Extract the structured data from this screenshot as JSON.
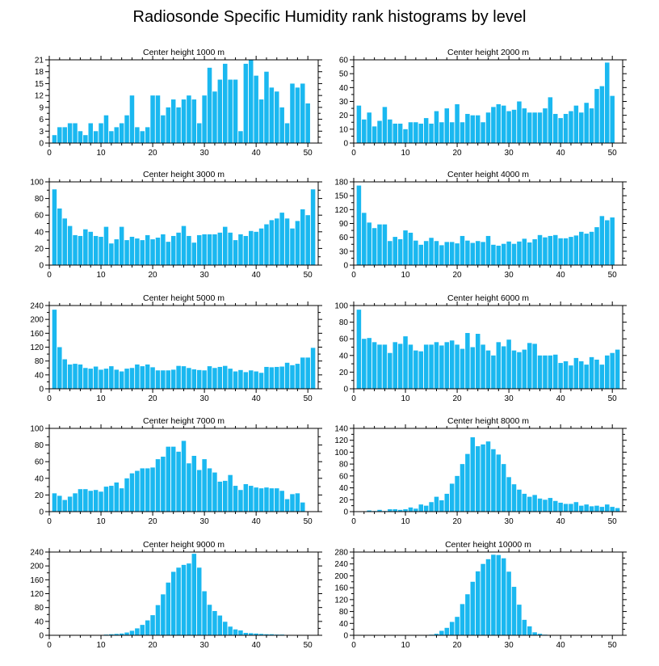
{
  "page": {
    "title": "Radiosonde Specific Humidity rank histograms by level"
  },
  "colors": {
    "bar": "#1ab8f0",
    "axis": "#000000",
    "background": "#ffffff"
  },
  "chart_data": [
    {
      "type": "bar",
      "title": "Center height 1000 m",
      "xlabel": "",
      "ylabel": "",
      "xlim": [
        0,
        52
      ],
      "ylim": [
        0,
        21
      ],
      "x_ticks": [
        0,
        10,
        20,
        30,
        40,
        50
      ],
      "y_ticks": [
        0,
        3,
        6,
        9,
        12,
        15,
        18,
        21
      ],
      "categories": [
        1,
        2,
        3,
        4,
        5,
        6,
        7,
        8,
        9,
        10,
        11,
        12,
        13,
        14,
        15,
        16,
        17,
        18,
        19,
        20,
        21,
        22,
        23,
        24,
        25,
        26,
        27,
        28,
        29,
        30,
        31,
        32,
        33,
        34,
        35,
        36,
        37,
        38,
        39,
        40,
        41,
        42,
        43,
        44,
        45,
        46,
        47,
        48,
        49,
        50,
        51
      ],
      "values": [
        2,
        4,
        4,
        5,
        5,
        3,
        2,
        5,
        3,
        5,
        7,
        3,
        4,
        5,
        7,
        12,
        4,
        3,
        4,
        12,
        12,
        7,
        9,
        11,
        9,
        11,
        12,
        11,
        5,
        12,
        19,
        13,
        16,
        20,
        16,
        16,
        3,
        20,
        21,
        17,
        11,
        18,
        14,
        13,
        9,
        5,
        15,
        14,
        15,
        10,
        0
      ]
    },
    {
      "type": "bar",
      "title": "Center height 2000 m",
      "xlabel": "",
      "ylabel": "",
      "xlim": [
        0,
        52
      ],
      "ylim": [
        0,
        60
      ],
      "x_ticks": [
        0,
        10,
        20,
        30,
        40,
        50
      ],
      "y_ticks": [
        0,
        10,
        20,
        30,
        40,
        50,
        60
      ],
      "categories": [
        1,
        2,
        3,
        4,
        5,
        6,
        7,
        8,
        9,
        10,
        11,
        12,
        13,
        14,
        15,
        16,
        17,
        18,
        19,
        20,
        21,
        22,
        23,
        24,
        25,
        26,
        27,
        28,
        29,
        30,
        31,
        32,
        33,
        34,
        35,
        36,
        37,
        38,
        39,
        40,
        41,
        42,
        43,
        44,
        45,
        46,
        47,
        48,
        49,
        50,
        51
      ],
      "values": [
        27,
        17,
        22,
        12,
        16,
        26,
        17,
        14,
        14,
        10,
        15,
        15,
        14,
        18,
        14,
        23,
        15,
        25,
        15,
        28,
        15,
        21,
        20,
        20,
        15,
        22,
        26,
        28,
        27,
        23,
        24,
        30,
        25,
        22,
        22,
        22,
        25,
        33,
        21,
        18,
        21,
        23,
        27,
        22,
        29,
        25,
        39,
        41,
        58,
        34,
        0
      ]
    },
    {
      "type": "bar",
      "title": "Center height 3000 m",
      "xlabel": "",
      "ylabel": "",
      "xlim": [
        0,
        52
      ],
      "ylim": [
        0,
        100
      ],
      "x_ticks": [
        0,
        10,
        20,
        30,
        40,
        50
      ],
      "y_ticks": [
        0,
        20,
        40,
        60,
        80,
        100
      ],
      "categories": [
        1,
        2,
        3,
        4,
        5,
        6,
        7,
        8,
        9,
        10,
        11,
        12,
        13,
        14,
        15,
        16,
        17,
        18,
        19,
        20,
        21,
        22,
        23,
        24,
        25,
        26,
        27,
        28,
        29,
        30,
        31,
        32,
        33,
        34,
        35,
        36,
        37,
        38,
        39,
        40,
        41,
        42,
        43,
        44,
        45,
        46,
        47,
        48,
        49,
        50,
        51
      ],
      "values": [
        91,
        68,
        56,
        47,
        36,
        35,
        43,
        40,
        35,
        34,
        46,
        26,
        31,
        46,
        30,
        34,
        32,
        30,
        36,
        31,
        33,
        37,
        28,
        35,
        39,
        47,
        35,
        27,
        36,
        37,
        37,
        37,
        39,
        46,
        39,
        30,
        37,
        35,
        41,
        40,
        44,
        49,
        54,
        56,
        63,
        56,
        44,
        53,
        67,
        60,
        91
      ]
    },
    {
      "type": "bar",
      "title": "Center height 4000 m",
      "xlabel": "",
      "ylabel": "",
      "xlim": [
        0,
        52
      ],
      "ylim": [
        0,
        180
      ],
      "x_ticks": [
        0,
        10,
        20,
        30,
        40,
        50
      ],
      "y_ticks": [
        0,
        30,
        60,
        90,
        120,
        150,
        180
      ],
      "categories": [
        1,
        2,
        3,
        4,
        5,
        6,
        7,
        8,
        9,
        10,
        11,
        12,
        13,
        14,
        15,
        16,
        17,
        18,
        19,
        20,
        21,
        22,
        23,
        24,
        25,
        26,
        27,
        28,
        29,
        30,
        31,
        32,
        33,
        34,
        35,
        36,
        37,
        38,
        39,
        40,
        41,
        42,
        43,
        44,
        45,
        46,
        47,
        48,
        49,
        50,
        51
      ],
      "values": [
        172,
        113,
        92,
        80,
        88,
        88,
        52,
        61,
        56,
        75,
        70,
        53,
        44,
        52,
        59,
        52,
        43,
        50,
        50,
        47,
        63,
        53,
        48,
        52,
        50,
        63,
        44,
        42,
        46,
        51,
        46,
        51,
        57,
        49,
        56,
        65,
        60,
        63,
        65,
        58,
        58,
        61,
        64,
        72,
        68,
        72,
        82,
        106,
        97,
        103,
        0
      ]
    },
    {
      "type": "bar",
      "title": "Center height 5000 m",
      "xlabel": "",
      "ylabel": "",
      "xlim": [
        0,
        52
      ],
      "ylim": [
        0,
        240
      ],
      "x_ticks": [
        0,
        10,
        20,
        30,
        40,
        50
      ],
      "y_ticks": [
        0,
        40,
        80,
        120,
        160,
        200,
        240
      ],
      "categories": [
        1,
        2,
        3,
        4,
        5,
        6,
        7,
        8,
        9,
        10,
        11,
        12,
        13,
        14,
        15,
        16,
        17,
        18,
        19,
        20,
        21,
        22,
        23,
        24,
        25,
        26,
        27,
        28,
        29,
        30,
        31,
        32,
        33,
        34,
        35,
        36,
        37,
        38,
        39,
        40,
        41,
        42,
        43,
        44,
        45,
        46,
        47,
        48,
        49,
        50,
        51
      ],
      "values": [
        228,
        120,
        85,
        70,
        72,
        70,
        60,
        58,
        64,
        55,
        58,
        65,
        55,
        50,
        58,
        60,
        70,
        65,
        70,
        62,
        53,
        53,
        53,
        55,
        66,
        65,
        60,
        56,
        54,
        53,
        65,
        60,
        63,
        66,
        58,
        50,
        54,
        48,
        53,
        50,
        46,
        63,
        62,
        63,
        64,
        75,
        68,
        72,
        90,
        90,
        118
      ]
    },
    {
      "type": "bar",
      "title": "Center height 6000 m",
      "xlabel": "",
      "ylabel": "",
      "xlim": [
        0,
        52
      ],
      "ylim": [
        0,
        100
      ],
      "x_ticks": [
        0,
        10,
        20,
        30,
        40,
        50
      ],
      "y_ticks": [
        0,
        20,
        40,
        60,
        80,
        100
      ],
      "categories": [
        1,
        2,
        3,
        4,
        5,
        6,
        7,
        8,
        9,
        10,
        11,
        12,
        13,
        14,
        15,
        16,
        17,
        18,
        19,
        20,
        21,
        22,
        23,
        24,
        25,
        26,
        27,
        28,
        29,
        30,
        31,
        32,
        33,
        34,
        35,
        36,
        37,
        38,
        39,
        40,
        41,
        42,
        43,
        44,
        45,
        46,
        47,
        48,
        49,
        50,
        51
      ],
      "values": [
        95,
        60,
        61,
        56,
        53,
        53,
        43,
        56,
        54,
        63,
        53,
        46,
        45,
        53,
        53,
        56,
        52,
        56,
        58,
        53,
        48,
        67,
        50,
        66,
        53,
        46,
        40,
        56,
        51,
        59,
        46,
        44,
        47,
        55,
        54,
        40,
        40,
        40,
        41,
        31,
        33,
        28,
        37,
        33,
        29,
        38,
        35,
        29,
        40,
        43,
        47
      ]
    },
    {
      "type": "bar",
      "title": "Center height 7000 m",
      "xlabel": "",
      "ylabel": "",
      "xlim": [
        0,
        52
      ],
      "ylim": [
        0,
        100
      ],
      "x_ticks": [
        0,
        10,
        20,
        30,
        40,
        50
      ],
      "y_ticks": [
        0,
        20,
        40,
        60,
        80,
        100
      ],
      "categories": [
        1,
        2,
        3,
        4,
        5,
        6,
        7,
        8,
        9,
        10,
        11,
        12,
        13,
        14,
        15,
        16,
        17,
        18,
        19,
        20,
        21,
        22,
        23,
        24,
        25,
        26,
        27,
        28,
        29,
        30,
        31,
        32,
        33,
        34,
        35,
        36,
        37,
        38,
        39,
        40,
        41,
        42,
        43,
        44,
        45,
        46,
        47,
        48,
        49,
        50,
        51
      ],
      "values": [
        22,
        19,
        14,
        18,
        22,
        27,
        27,
        25,
        26,
        24,
        30,
        31,
        35,
        28,
        40,
        46,
        49,
        52,
        52,
        53,
        63,
        66,
        78,
        78,
        72,
        85,
        58,
        67,
        50,
        63,
        52,
        47,
        36,
        37,
        44,
        31,
        26,
        33,
        31,
        29,
        28,
        29,
        28,
        28,
        25,
        15,
        21,
        22,
        11,
        0,
        0
      ]
    },
    {
      "type": "bar",
      "title": "Center height 8000 m",
      "xlabel": "",
      "ylabel": "",
      "xlim": [
        0,
        52
      ],
      "ylim": [
        0,
        140
      ],
      "x_ticks": [
        0,
        10,
        20,
        30,
        40,
        50
      ],
      "y_ticks": [
        0,
        20,
        40,
        60,
        80,
        100,
        120,
        140
      ],
      "categories": [
        1,
        2,
        3,
        4,
        5,
        6,
        7,
        8,
        9,
        10,
        11,
        12,
        13,
        14,
        15,
        16,
        17,
        18,
        19,
        20,
        21,
        22,
        23,
        24,
        25,
        26,
        27,
        28,
        29,
        30,
        31,
        32,
        33,
        34,
        35,
        36,
        37,
        38,
        39,
        40,
        41,
        42,
        43,
        44,
        45,
        46,
        47,
        48,
        49,
        50,
        51
      ],
      "values": [
        0,
        0,
        2,
        1,
        3,
        1,
        4,
        4,
        3,
        4,
        7,
        5,
        12,
        10,
        16,
        25,
        19,
        30,
        47,
        60,
        80,
        97,
        125,
        110,
        113,
        118,
        105,
        96,
        80,
        58,
        46,
        37,
        30,
        25,
        28,
        22,
        20,
        23,
        18,
        15,
        13,
        13,
        16,
        10,
        12,
        9,
        10,
        8,
        12,
        8,
        6
      ]
    },
    {
      "type": "bar",
      "title": "Center height 9000 m",
      "xlabel": "",
      "ylabel": "",
      "xlim": [
        0,
        52
      ],
      "ylim": [
        0,
        240
      ],
      "x_ticks": [
        0,
        10,
        20,
        30,
        40,
        50
      ],
      "y_ticks": [
        0,
        40,
        80,
        120,
        160,
        200,
        240
      ],
      "categories": [
        1,
        2,
        3,
        4,
        5,
        6,
        7,
        8,
        9,
        10,
        11,
        12,
        13,
        14,
        15,
        16,
        17,
        18,
        19,
        20,
        21,
        22,
        23,
        24,
        25,
        26,
        27,
        28,
        29,
        30,
        31,
        32,
        33,
        34,
        35,
        36,
        37,
        38,
        39,
        40,
        41,
        42,
        43,
        44,
        45,
        46,
        47,
        48,
        49,
        50,
        51
      ],
      "values": [
        0,
        0,
        0,
        0,
        0,
        0,
        0,
        0,
        0,
        1,
        2,
        3,
        4,
        5,
        8,
        13,
        20,
        30,
        43,
        58,
        87,
        118,
        152,
        183,
        195,
        203,
        207,
        235,
        195,
        127,
        88,
        70,
        57,
        39,
        25,
        17,
        14,
        7,
        6,
        5,
        4,
        3,
        3,
        2,
        2,
        1,
        1,
        1,
        0,
        0,
        0
      ]
    },
    {
      "type": "bar",
      "title": "Center height 10000 m",
      "xlabel": "",
      "ylabel": "",
      "xlim": [
        0,
        52
      ],
      "ylim": [
        0,
        280
      ],
      "x_ticks": [
        0,
        10,
        20,
        30,
        40,
        50
      ],
      "y_ticks": [
        0,
        40,
        80,
        120,
        160,
        200,
        240,
        280
      ],
      "categories": [
        1,
        2,
        3,
        4,
        5,
        6,
        7,
        8,
        9,
        10,
        11,
        12,
        13,
        14,
        15,
        16,
        17,
        18,
        19,
        20,
        21,
        22,
        23,
        24,
        25,
        26,
        27,
        28,
        29,
        30,
        31,
        32,
        33,
        34,
        35,
        36,
        37,
        38,
        39,
        40,
        41,
        42,
        43,
        44,
        45,
        46,
        47,
        48,
        49,
        50,
        51
      ],
      "values": [
        0,
        0,
        0,
        0,
        0,
        0,
        0,
        0,
        0,
        0,
        0,
        0,
        0,
        0,
        2,
        5,
        15,
        25,
        45,
        62,
        105,
        138,
        180,
        215,
        240,
        256,
        271,
        270,
        259,
        214,
        163,
        103,
        52,
        30,
        10,
        5,
        2,
        1,
        1,
        1,
        1,
        0,
        0,
        0,
        0,
        0,
        0,
        0,
        0,
        0,
        0
      ]
    }
  ]
}
